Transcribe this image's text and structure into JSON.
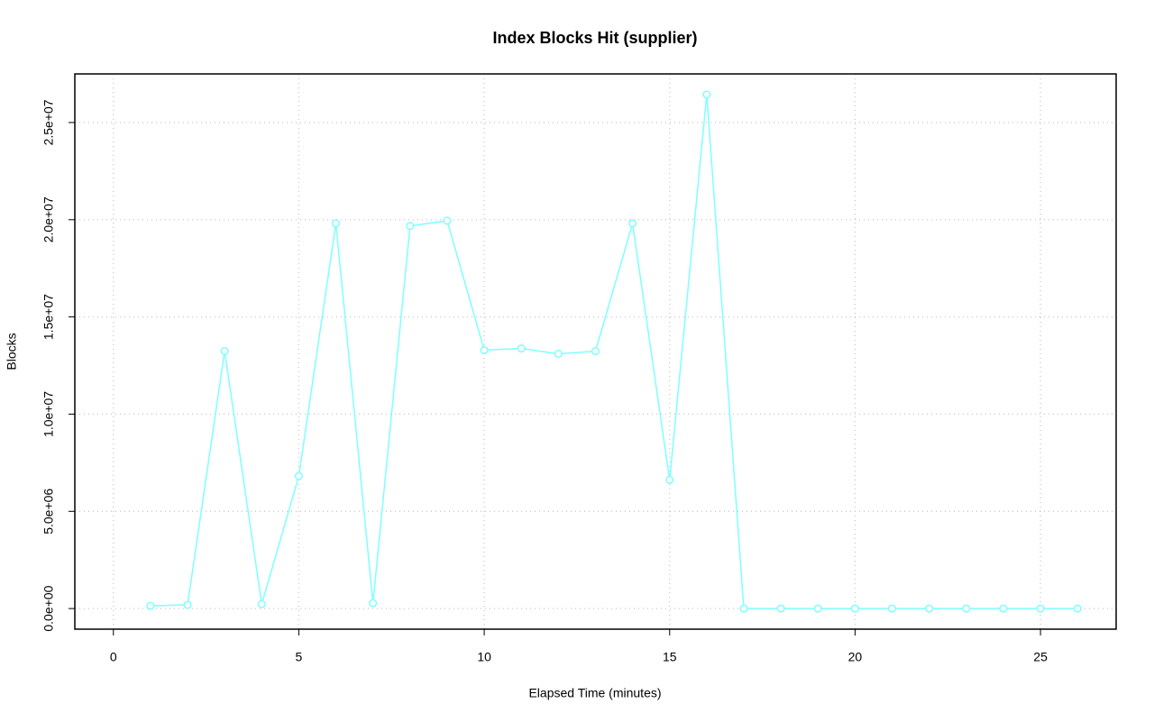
{
  "chart_data": {
    "type": "line",
    "title": "Index Blocks Hit (supplier)",
    "x_label": "Elapsed Time (minutes)",
    "y_label": "Blocks",
    "x": [
      1,
      2,
      3,
      4,
      5,
      6,
      7,
      8,
      9,
      10,
      11,
      12,
      13,
      14,
      15,
      16,
      17,
      18,
      19,
      20,
      21,
      22,
      23,
      24,
      25,
      26
    ],
    "series": [
      {
        "name": "supplier",
        "color": "#7fffff",
        "values": [
          140000,
          190000,
          13240000,
          230000,
          6810000,
          19810000,
          280000,
          19680000,
          19950000,
          13290000,
          13380000,
          13100000,
          13240000,
          19810000,
          6620000,
          26440000,
          0,
          0,
          0,
          0,
          0,
          0,
          0,
          0,
          0,
          0
        ]
      }
    ],
    "xlim": [
      -1.04,
      27.04
    ],
    "ylim": [
      -1060000,
      27500000
    ],
    "xticks": [
      0,
      5,
      10,
      15,
      20,
      25
    ],
    "yticks": [
      {
        "value": 0,
        "label": "0.0e+00"
      },
      {
        "value": 5000000,
        "label": "5.0e+06"
      },
      {
        "value": 10000000,
        "label": "1.0e+07"
      },
      {
        "value": 15000000,
        "label": "1.5e+07"
      },
      {
        "value": 20000000,
        "label": "2.0e+07"
      },
      {
        "value": 25000000,
        "label": "2.5e+07"
      }
    ],
    "grid": true,
    "markers": "open-circle"
  }
}
